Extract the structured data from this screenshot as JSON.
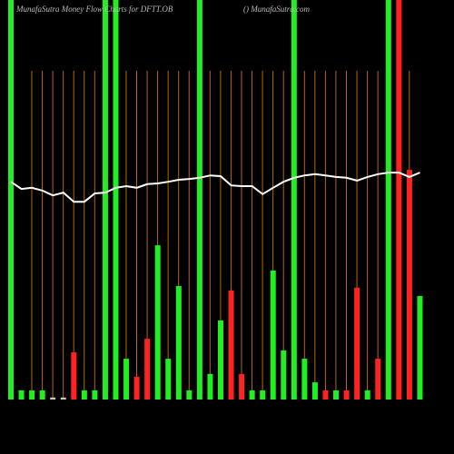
{
  "chart_data": {
    "type": "bar",
    "title": "MunafaSutra  Money Flow  Charts for DFTT.OB",
    "subtitle": "() MunafaSutra.com",
    "values": [
      100,
      2.3,
      2.3,
      2.3,
      0.5,
      0.5,
      11.8,
      2.3,
      2.3,
      100,
      100,
      10.2,
      5.7,
      15.2,
      38.6,
      10.2,
      28.4,
      2.3,
      100,
      6.4,
      19.8,
      27.3,
      6.4,
      2.3,
      2.3,
      32.3,
      12.3,
      100,
      10.2,
      4.3,
      2.3,
      2.3,
      2.3,
      28,
      2.3,
      10.2,
      100,
      100,
      57.5,
      25.9
    ],
    "colors": [
      "#22ee22",
      "#22ee22",
      "#22ee22",
      "#22ee22",
      "#cccccc",
      "#cccccc",
      "#ff2222",
      "#22ee22",
      "#22ee22",
      "#22ee22",
      "#22ee22",
      "#22ee22",
      "#ff2222",
      "#ff2222",
      "#22ee22",
      "#22ee22",
      "#22ee22",
      "#22ee22",
      "#22ee22",
      "#22ee22",
      "#22ee22",
      "#ff2222",
      "#ff2222",
      "#22ee22",
      "#22ee22",
      "#22ee22",
      "#22ee22",
      "#22ee22",
      "#22ee22",
      "#22ee22",
      "#ff2222",
      "#22ee22",
      "#ff2222",
      "#ff2222",
      "#22ee22",
      "#ff2222",
      "#22ee22",
      "#ff2222",
      "#ff2222",
      "#22ee22"
    ],
    "line": {
      "color": "#ffffff",
      "values": [
        54.5,
        52.7,
        53,
        52.3,
        51.1,
        51.8,
        49.5,
        49.5,
        51.6,
        51.8,
        53,
        53.4,
        53,
        53.9,
        54.1,
        54.5,
        55,
        55.2,
        55.5,
        56.1,
        55.9,
        53.6,
        53.4,
        53.4,
        51.4,
        53,
        54.5,
        55.5,
        56.1,
        56.4,
        56.1,
        55.7,
        55.5,
        54.8,
        55.7,
        56.4,
        56.8,
        56.8,
        55.7,
        56.8
      ]
    },
    "ylim": [
      0,
      100
    ],
    "grid_color": "#b8660b"
  }
}
